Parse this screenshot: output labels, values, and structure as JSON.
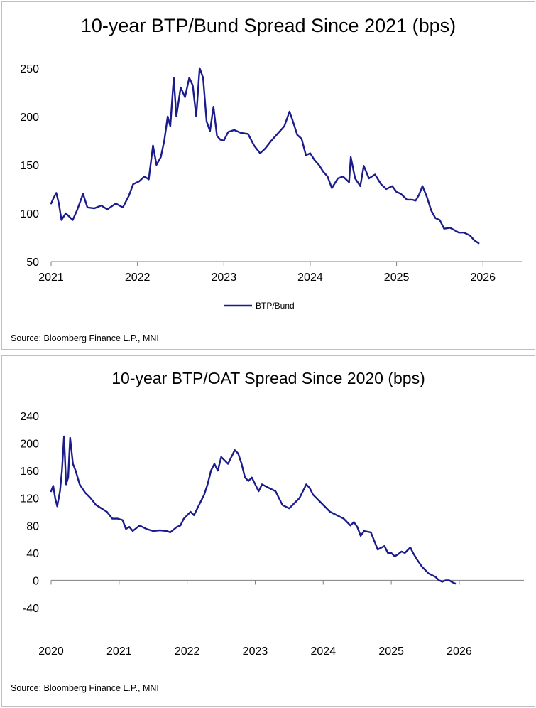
{
  "chart_data": [
    {
      "type": "line",
      "title": "10-year BTP/Bund Spread Since 2021 (bps)",
      "source": "Source: Bloomberg Finance L.P., MNI",
      "xlabel": "",
      "ylabel": "",
      "xlim": [
        2021,
        2026.45
      ],
      "ylim": [
        50,
        255
      ],
      "x_tick_labels": [
        "2021",
        "2022",
        "2023",
        "2024",
        "2025",
        "2026"
      ],
      "x_ticks": [
        2021,
        2022,
        2023,
        2024,
        2025,
        2026
      ],
      "y_tick_labels": [
        "250",
        "200",
        "150",
        "100",
        "50"
      ],
      "y_ticks": [
        250,
        200,
        150,
        100,
        50
      ],
      "legend": {
        "placement": "bottom-center",
        "entries": [
          "BTP/Bund"
        ]
      },
      "color": "#1b1b8c",
      "series": [
        {
          "name": "BTP/Bund",
          "x": [
            2021.0,
            2021.03,
            2021.06,
            2021.09,
            2021.12,
            2021.17,
            2021.25,
            2021.3,
            2021.37,
            2021.42,
            2021.5,
            2021.58,
            2021.65,
            2021.75,
            2021.83,
            2021.9,
            2021.95,
            2022.02,
            2022.08,
            2022.13,
            2022.18,
            2022.22,
            2022.27,
            2022.31,
            2022.35,
            2022.38,
            2022.42,
            2022.45,
            2022.5,
            2022.55,
            2022.6,
            2022.64,
            2022.68,
            2022.72,
            2022.76,
            2022.8,
            2022.84,
            2022.88,
            2022.92,
            2022.96,
            2023.0,
            2023.05,
            2023.12,
            2023.2,
            2023.28,
            2023.35,
            2023.42,
            2023.48,
            2023.55,
            2023.62,
            2023.7,
            2023.76,
            2023.8,
            2023.85,
            2023.9,
            2023.95,
            2024.0,
            2024.05,
            2024.1,
            2024.15,
            2024.2,
            2024.25,
            2024.32,
            2024.38,
            2024.45,
            2024.47,
            2024.52,
            2024.58,
            2024.62,
            2024.68,
            2024.75,
            2024.82,
            2024.88,
            2024.95,
            2025.0,
            2025.05,
            2025.12,
            2025.18,
            2025.22,
            2025.26,
            2025.3,
            2025.35,
            2025.4,
            2025.45,
            2025.5,
            2025.55,
            2025.62,
            2025.68,
            2025.72,
            2025.78,
            2025.85,
            2025.9,
            2025.95
          ],
          "y": [
            110,
            116,
            121,
            110,
            93,
            100,
            93,
            103,
            120,
            106,
            105,
            108,
            104,
            110,
            106,
            118,
            130,
            133,
            138,
            135,
            170,
            150,
            158,
            175,
            200,
            190,
            240,
            200,
            230,
            220,
            240,
            232,
            200,
            250,
            240,
            195,
            185,
            210,
            180,
            176,
            175,
            184,
            186,
            183,
            182,
            170,
            162,
            167,
            175,
            182,
            190,
            205,
            195,
            181,
            177,
            160,
            162,
            155,
            150,
            143,
            138,
            126,
            136,
            138,
            132,
            158,
            136,
            128,
            149,
            136,
            140,
            130,
            125,
            128,
            122,
            120,
            114,
            114,
            113,
            119,
            128,
            117,
            103,
            95,
            93,
            84,
            85,
            82,
            80,
            80,
            77,
            72,
            69
          ]
        }
      ]
    },
    {
      "type": "line",
      "title": "10-year BTP/OAT Spread Since 2020 (bps)",
      "source": "Source: Bloomberg Finance L.P., MNI",
      "xlabel": "",
      "ylabel": "",
      "xlim": [
        2020,
        2026.95
      ],
      "ylim": [
        -40,
        240
      ],
      "x_tick_labels": [
        "2020",
        "2021",
        "2022",
        "2023",
        "2024",
        "2025",
        "2026"
      ],
      "x_ticks": [
        2020,
        2021,
        2022,
        2023,
        2024,
        2025,
        2026
      ],
      "y_tick_labels": [
        "240",
        "200",
        "160",
        "120",
        "80",
        "40",
        "0",
        "-40"
      ],
      "y_ticks": [
        240,
        200,
        160,
        120,
        80,
        40,
        0,
        -40
      ],
      "legend": {
        "placement": "none",
        "entries": []
      },
      "color": "#1b1b8c",
      "series": [
        {
          "name": "BTP/OAT",
          "x": [
            2020.0,
            2020.03,
            2020.06,
            2020.09,
            2020.13,
            2020.16,
            2020.19,
            2020.22,
            2020.25,
            2020.28,
            2020.32,
            2020.36,
            2020.42,
            2020.5,
            2020.58,
            2020.66,
            2020.74,
            2020.82,
            2020.9,
            2020.98,
            2021.05,
            2021.1,
            2021.15,
            2021.2,
            2021.3,
            2021.4,
            2021.5,
            2021.6,
            2021.7,
            2021.75,
            2021.8,
            2021.85,
            2021.9,
            2021.95,
            2022.0,
            2022.05,
            2022.1,
            2022.15,
            2022.2,
            2022.25,
            2022.3,
            2022.35,
            2022.4,
            2022.45,
            2022.5,
            2022.55,
            2022.6,
            2022.65,
            2022.7,
            2022.75,
            2022.8,
            2022.85,
            2022.9,
            2022.95,
            2023.0,
            2023.05,
            2023.1,
            2023.2,
            2023.3,
            2023.4,
            2023.5,
            2023.6,
            2023.65,
            2023.7,
            2023.75,
            2023.8,
            2023.85,
            2023.9,
            2023.95,
            2024.0,
            2024.1,
            2024.2,
            2024.3,
            2024.4,
            2024.45,
            2024.5,
            2024.55,
            2024.6,
            2024.7,
            2024.8,
            2024.9,
            2024.95,
            2025.0,
            2025.05,
            2025.1,
            2025.15,
            2025.2,
            2025.25,
            2025.28,
            2025.32,
            2025.38,
            2025.45,
            2025.55,
            2025.65,
            2025.7,
            2025.75,
            2025.8,
            2025.85,
            2025.9,
            2025.95
          ],
          "y": [
            130,
            138,
            120,
            108,
            130,
            160,
            210,
            140,
            150,
            208,
            170,
            160,
            140,
            128,
            120,
            110,
            105,
            100,
            90,
            90,
            88,
            75,
            78,
            72,
            80,
            75,
            72,
            73,
            72,
            70,
            74,
            78,
            80,
            90,
            95,
            100,
            95,
            105,
            115,
            125,
            140,
            160,
            170,
            160,
            180,
            175,
            170,
            180,
            190,
            185,
            170,
            150,
            145,
            150,
            140,
            130,
            140,
            135,
            130,
            110,
            105,
            115,
            120,
            130,
            140,
            135,
            125,
            120,
            115,
            110,
            100,
            95,
            90,
            80,
            85,
            78,
            65,
            72,
            70,
            45,
            50,
            40,
            40,
            35,
            38,
            42,
            40,
            45,
            48,
            40,
            30,
            20,
            10,
            5,
            0,
            -2,
            0,
            0,
            -3,
            -5
          ]
        }
      ]
    }
  ]
}
